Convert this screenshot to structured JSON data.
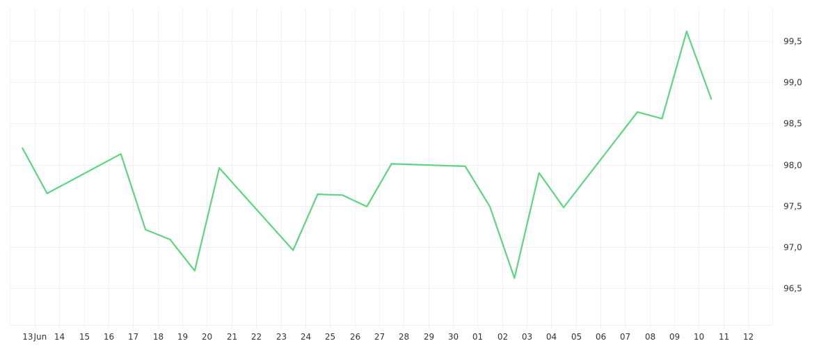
{
  "chart_data": {
    "type": "line",
    "title": "",
    "xlabel": "",
    "ylabel": "",
    "y_axis_position": "right",
    "grid": true,
    "line_color": "#5bd67f",
    "x_ticks": [
      "13",
      "14",
      "15",
      "16",
      "17",
      "18",
      "19",
      "20",
      "21",
      "22",
      "23",
      "24",
      "25",
      "26",
      "27",
      "28",
      "29",
      "30",
      "01",
      "02",
      "03",
      "04",
      "05",
      "06",
      "07",
      "08",
      "09",
      "10",
      "11",
      "12"
    ],
    "x_tick_month_label": "Jun",
    "y_ticks": [
      "96,5",
      "97,0",
      "97,5",
      "98,0",
      "98,5",
      "99,0",
      "99,5"
    ],
    "ylim": [
      96.05,
      99.9
    ],
    "x": [
      "2023-06-12",
      "2023-06-13",
      "2023-06-16",
      "2023-06-17",
      "2023-06-18",
      "2023-06-19",
      "2023-06-20",
      "2023-06-23",
      "2023-06-24",
      "2023-06-25",
      "2023-06-26",
      "2023-06-27",
      "2023-06-30",
      "2023-07-01",
      "2023-07-02",
      "2023-07-03",
      "2023-07-04",
      "2023-07-07",
      "2023-07-08",
      "2023-07-09",
      "2023-07-10"
    ],
    "series": [
      {
        "values": [
          98.2,
          97.65,
          98.13,
          97.21,
          97.09,
          96.71,
          97.96,
          96.96,
          97.64,
          97.63,
          97.49,
          98.01,
          97.98,
          97.49,
          96.62,
          97.9,
          97.48,
          98.64,
          98.56,
          99.62,
          98.8
        ]
      }
    ]
  }
}
